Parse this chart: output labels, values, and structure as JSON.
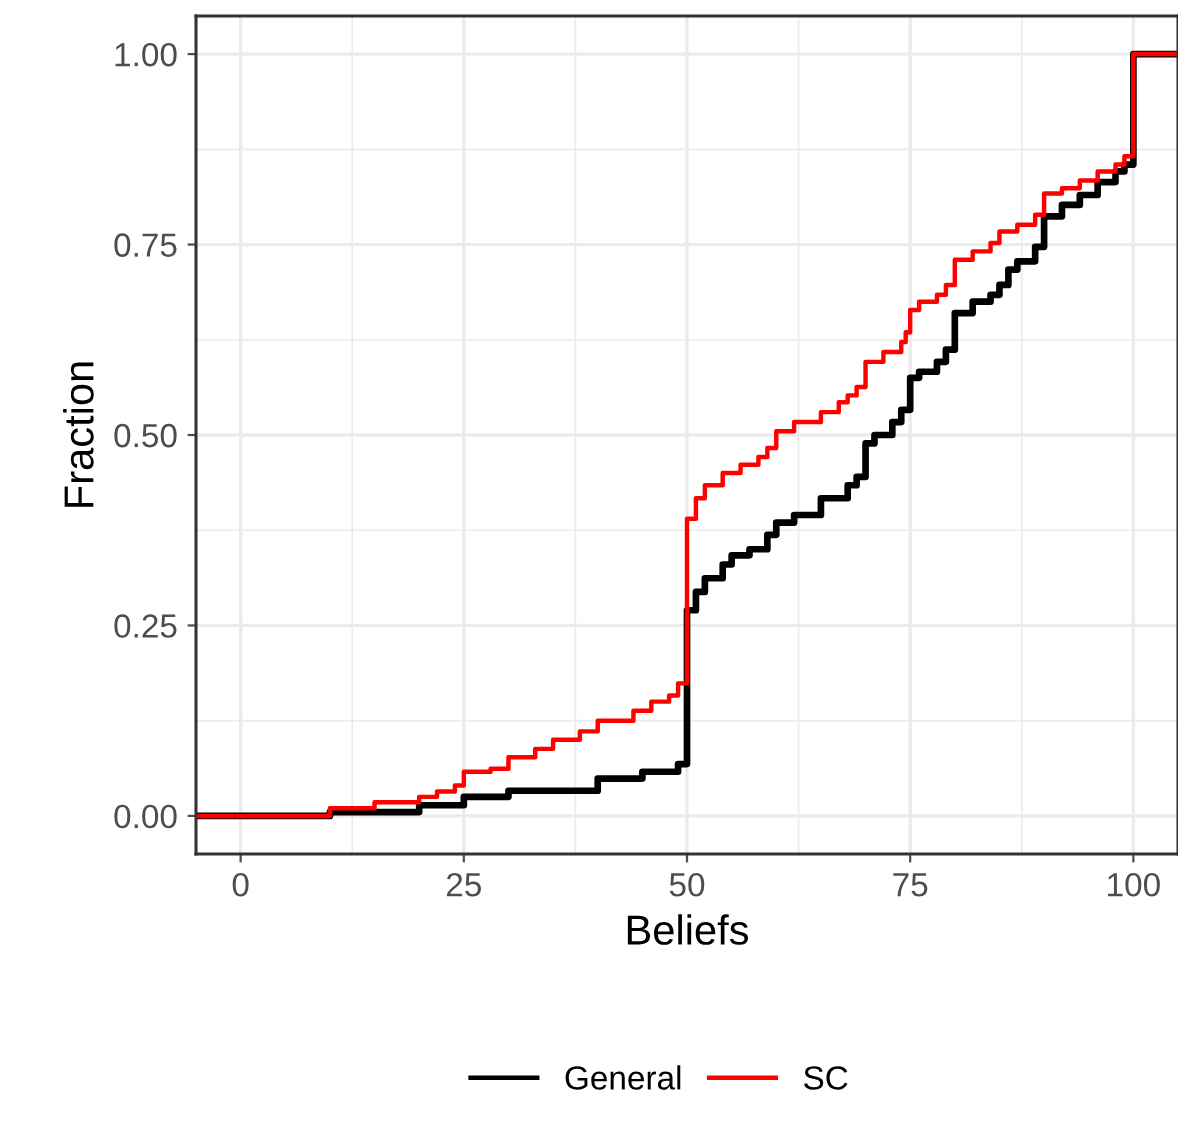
{
  "chart_data": {
    "type": "step",
    "xlabel": "Beliefs",
    "ylabel": "Fraction",
    "xlim": [
      -5,
      105
    ],
    "ylim": [
      -0.05,
      1.05
    ],
    "xticks": [
      0,
      25,
      50,
      75,
      100
    ],
    "yticks": [
      {
        "value": 0,
        "label": "0.00"
      },
      {
        "value": 0.25,
        "label": "0.25"
      },
      {
        "value": 0.5,
        "label": "0.50"
      },
      {
        "value": 0.75,
        "label": "0.75"
      },
      {
        "value": 1,
        "label": "1.00"
      }
    ],
    "grid": true,
    "legend": "bottom",
    "line_style": "solid",
    "marker": "none",
    "series": [
      {
        "name": "General",
        "color": "#000000",
        "x": [
          -5,
          0,
          10,
          20,
          25,
          30,
          40,
          45,
          49,
          50,
          51,
          52,
          54,
          55,
          57,
          59,
          60,
          62,
          65,
          68,
          69,
          70,
          71,
          73,
          74,
          75,
          76,
          78,
          79,
          80,
          82,
          84,
          85,
          86,
          87,
          89,
          90,
          92,
          94,
          96,
          98,
          99,
          100,
          105
        ],
        "values": [
          0,
          0,
          0.005,
          0.014,
          0.025,
          0.033,
          0.049,
          0.058,
          0.068,
          0.27,
          0.294,
          0.312,
          0.33,
          0.342,
          0.35,
          0.369,
          0.385,
          0.395,
          0.417,
          0.434,
          0.445,
          0.489,
          0.5,
          0.517,
          0.533,
          0.575,
          0.583,
          0.596,
          0.612,
          0.66,
          0.675,
          0.684,
          0.697,
          0.717,
          0.728,
          0.747,
          0.787,
          0.802,
          0.815,
          0.832,
          0.846,
          0.855,
          1,
          1
        ]
      },
      {
        "name": "SC",
        "color": "#ff0000",
        "x": [
          -5,
          0,
          10,
          15,
          20,
          22,
          24,
          25,
          28,
          30,
          33,
          35,
          38,
          40,
          44,
          46,
          48,
          49,
          50,
          51,
          52,
          54,
          56,
          58,
          59,
          60,
          62,
          65,
          67,
          68,
          69,
          70,
          72,
          74,
          74.5,
          75,
          76,
          78,
          79,
          80,
          82,
          84,
          85,
          87,
          89,
          90,
          92,
          94,
          96,
          98,
          99,
          100,
          105
        ],
        "values": [
          0,
          0,
          0.01,
          0.018,
          0.025,
          0.032,
          0.04,
          0.058,
          0.062,
          0.077,
          0.088,
          0.1,
          0.111,
          0.125,
          0.138,
          0.15,
          0.158,
          0.174,
          0.39,
          0.417,
          0.434,
          0.45,
          0.461,
          0.471,
          0.483,
          0.505,
          0.517,
          0.53,
          0.543,
          0.552,
          0.563,
          0.596,
          0.609,
          0.622,
          0.635,
          0.664,
          0.675,
          0.684,
          0.697,
          0.73,
          0.741,
          0.752,
          0.767,
          0.776,
          0.789,
          0.817,
          0.824,
          0.834,
          0.846,
          0.855,
          0.866,
          1,
          1
        ]
      }
    ]
  }
}
